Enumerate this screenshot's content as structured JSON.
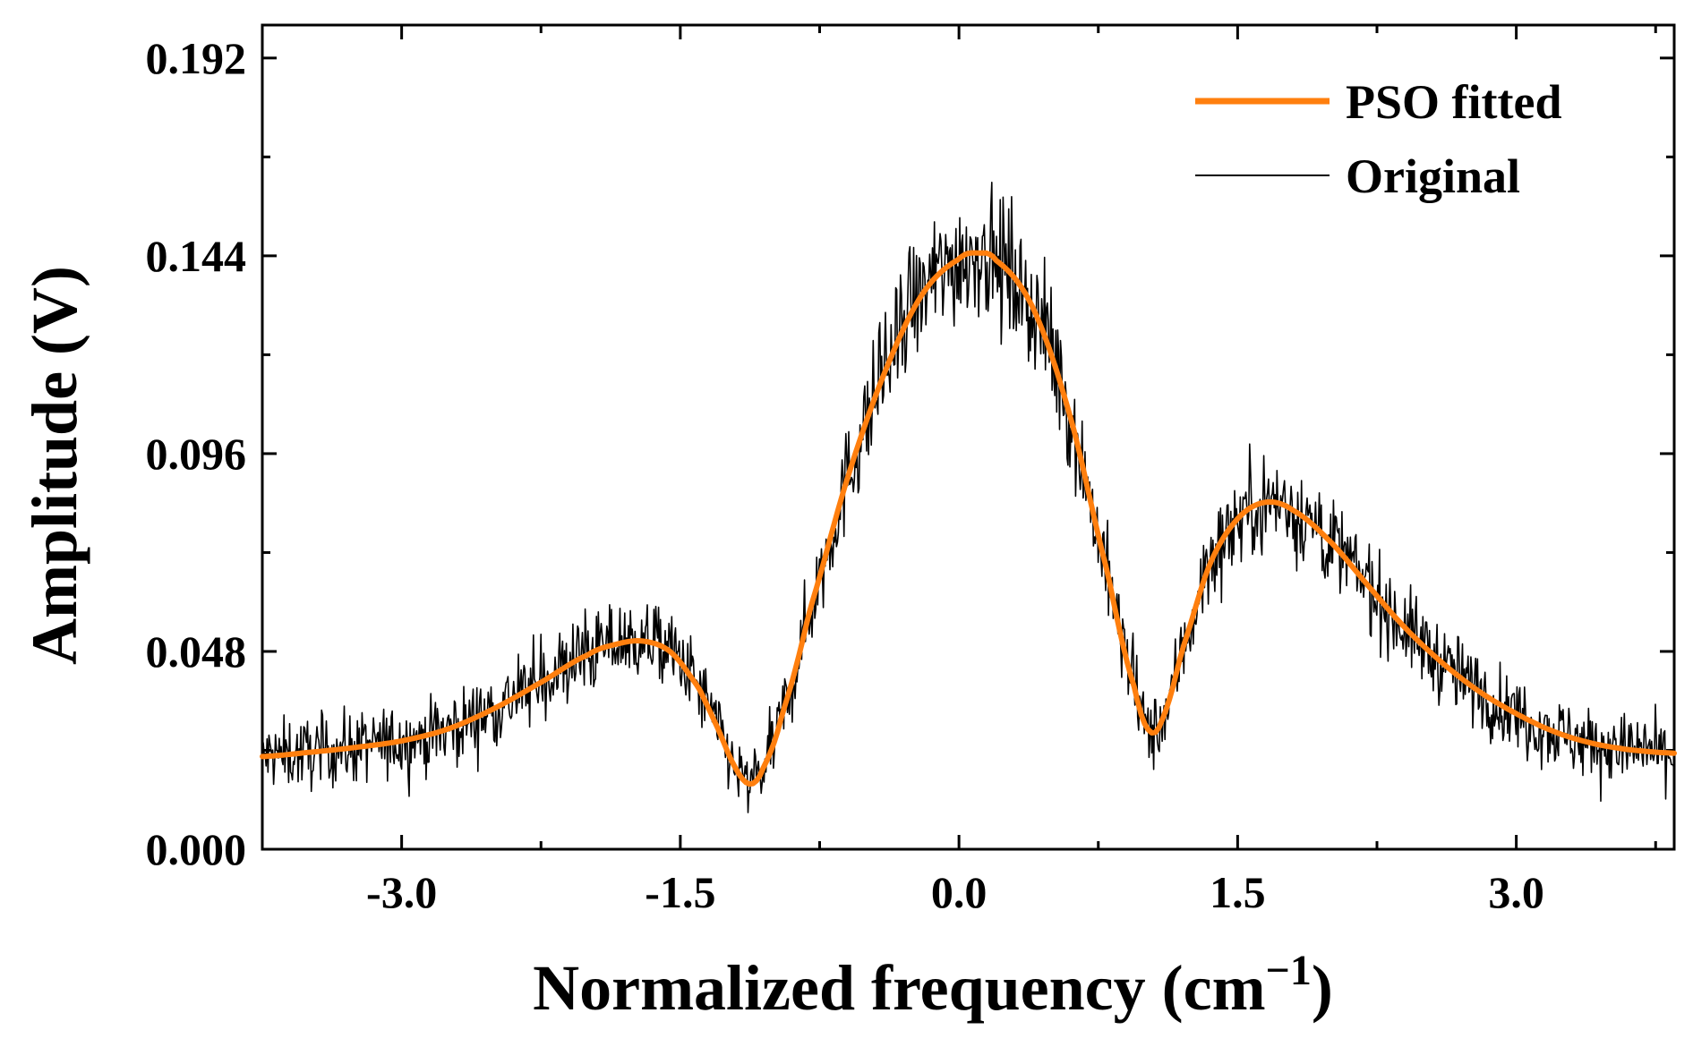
{
  "chart_data": {
    "type": "line",
    "title": "",
    "xlabel": "Normalized frequency (cm",
    "xlabel_superscript": "−1",
    "xlabel_close": ")",
    "ylabel": "Amplitude (V)",
    "xlim": [
      -3.75,
      3.85
    ],
    "ylim": [
      0,
      0.2
    ],
    "xticks": [
      -3.0,
      -1.5,
      0.0,
      1.5,
      3.0
    ],
    "xtick_labels": [
      "-3.0",
      "-1.5",
      "0.0",
      "1.5",
      "3.0"
    ],
    "yticks": [
      0,
      0.048,
      0.096,
      0.144,
      0.192
    ],
    "ytick_labels": [
      "0.000",
      "0.048",
      "0.096",
      "0.144",
      "0.192"
    ],
    "legend_position": "top-right",
    "grid": false,
    "series": [
      {
        "name": "PSO fitted",
        "color": "#FF7F0E",
        "style": "thick-smooth",
        "x": [
          -3.75,
          -3.5,
          -3.25,
          -3.0,
          -2.75,
          -2.5,
          -2.25,
          -2.0,
          -1.85,
          -1.7,
          -1.55,
          -1.4,
          -1.3,
          -1.2,
          -1.12,
          -1.05,
          -0.95,
          -0.8,
          -0.6,
          -0.4,
          -0.2,
          0.0,
          0.1,
          0.2,
          0.4,
          0.6,
          0.8,
          0.95,
          1.03,
          1.1,
          1.2,
          1.35,
          1.5,
          1.65,
          1.8,
          2.0,
          2.2,
          2.4,
          2.6,
          2.8,
          3.0,
          3.2,
          3.4,
          3.6,
          3.85
        ],
        "y": [
          0.0225,
          0.0235,
          0.0247,
          0.0263,
          0.0292,
          0.0342,
          0.0405,
          0.0471,
          0.0497,
          0.0505,
          0.0478,
          0.0391,
          0.0295,
          0.0195,
          0.0158,
          0.0201,
          0.0331,
          0.0585,
          0.0901,
          0.1157,
          0.1345,
          0.1432,
          0.1447,
          0.1429,
          0.1312,
          0.1048,
          0.0671,
          0.0385,
          0.0285,
          0.0322,
          0.0482,
          0.0691,
          0.0802,
          0.0842,
          0.0822,
          0.0746,
          0.0641,
          0.0538,
          0.0453,
          0.0383,
          0.0329,
          0.0286,
          0.0258,
          0.0242,
          0.0233
        ]
      },
      {
        "name": "Original",
        "color": "#000000",
        "style": "thin-noisy",
        "noise_amplitude": 0.012,
        "n_samples": 1500
      }
    ]
  }
}
